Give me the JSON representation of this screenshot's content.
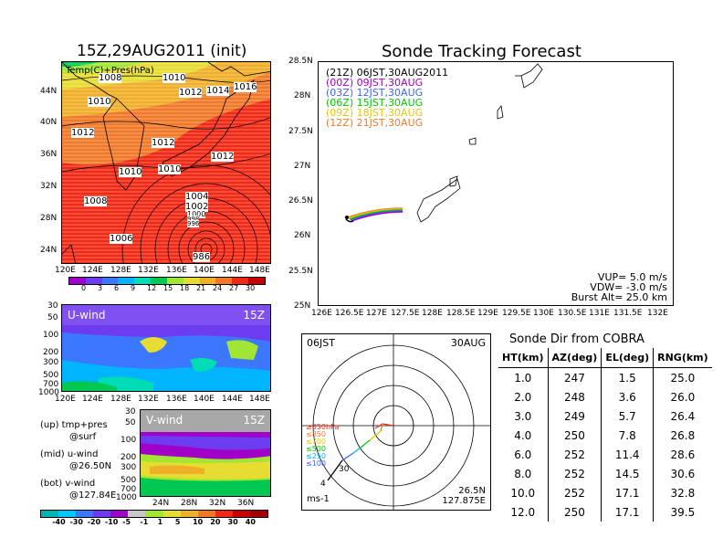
{
  "init_title": "15Z,29AUG2011 (init)",
  "track_title": "Sonde Tracking Forecast",
  "map": {
    "label": "Temp(C)+Pres(hPa)",
    "lat_ticks": [
      "44N",
      "40N",
      "36N",
      "32N",
      "28N",
      "24N"
    ],
    "lon_ticks": [
      "120E",
      "124E",
      "128E",
      "132E",
      "136E",
      "140E",
      "144E",
      "148E"
    ],
    "isobars": [
      "1008",
      "1010",
      "1012",
      "1014",
      "1016",
      "1010",
      "1012",
      "1012",
      "1010",
      "1010",
      "1012",
      "1008",
      "1004",
      "1002",
      "1000",
      "998",
      "996",
      "1006",
      "986"
    ],
    "colorbar": [
      "0",
      "3",
      "6",
      "9",
      "12",
      "15",
      "18",
      "21",
      "24",
      "27",
      "30"
    ],
    "colors": [
      "#a000c8",
      "#6e3cf0",
      "#3c78ff",
      "#00b4ff",
      "#00dcb4",
      "#00c850",
      "#a0e632",
      "#e6dc32",
      "#f0af28",
      "#f07828",
      "#f02814",
      "#c80000"
    ]
  },
  "uwind": {
    "label": "U-wind",
    "time": "15Z",
    "p_ticks": [
      "30",
      "50",
      "100",
      "200",
      "300",
      "500",
      "700",
      "1000"
    ],
    "lon_ticks": [
      "120E",
      "124E",
      "128E",
      "132E",
      "136E",
      "140E",
      "144E",
      "148E"
    ]
  },
  "vwind": {
    "label": "V-wind",
    "time": "15Z",
    "p_ticks": [
      "30",
      "50",
      "100",
      "200",
      "300",
      "500",
      "700",
      "1000"
    ],
    "lat_ticks": [
      "24N",
      "28N",
      "32N",
      "36N"
    ],
    "colorbar": [
      "-40",
      "-30",
      "-20",
      "-10",
      "-5",
      "-1",
      "1",
      "5",
      "10",
      "20",
      "30",
      "40"
    ]
  },
  "legend_notes": [
    {
      "line1": "(up) tmp+pres",
      "line2": "@surf"
    },
    {
      "line1": "(mid) u-wind",
      "line2": "@26.50N"
    },
    {
      "line1": "(bot) v-wind",
      "line2": "@127.84E"
    }
  ],
  "track": {
    "lat_ticks": [
      "28.5N",
      "28N",
      "27.5N",
      "27N",
      "26.5N",
      "26N",
      "25.5N",
      "25N"
    ],
    "lon_ticks": [
      "126E",
      "126.5E",
      "127E",
      "127.5E",
      "128E",
      "128.5E",
      "129E",
      "129.5E",
      "130E",
      "130.5E",
      "131E",
      "131.5E",
      "132E"
    ],
    "times": [
      {
        "label": "(21Z)  06JST,30AUG2011",
        "color": "#000000"
      },
      {
        "label": "(00Z)  09JST,30AUG",
        "color": "#a000c8"
      },
      {
        "label": "(03Z)  12JST,30AUG",
        "color": "#3c64ff"
      },
      {
        "label": "(06Z)  15JST,30AUG",
        "color": "#00c800"
      },
      {
        "label": "(09Z)  18JST,30AUG",
        "color": "#e6c800"
      },
      {
        "label": "(12Z)  21JST,30AUG",
        "color": "#f07828"
      }
    ],
    "vup": "VUP=  5.0  m/s",
    "vdw": "VDW= -3.0  m/s",
    "burst": "Burst Alt=  25.0  km"
  },
  "polar": {
    "time": "06JST",
    "date": "30AUG",
    "units": "ms-1",
    "lat": "26.5N",
    "lon": "127.875E",
    "levels": [
      {
        "label": "≥850hPa",
        "color": "#f02814"
      },
      {
        "label": "≤850",
        "color": "#f07828"
      },
      {
        "label": "≤700",
        "color": "#e6c800"
      },
      {
        "label": "≤500",
        "color": "#00c800"
      },
      {
        "label": "≤250",
        "color": "#00b4ff"
      },
      {
        "label": "≤100",
        "color": "#3c64ff"
      }
    ]
  },
  "sonde_dir": {
    "title": "Sonde Dir from COBRA",
    "headers": [
      "HT(km)",
      "AZ(deg)",
      "EL(deg)",
      "RNG(km)"
    ],
    "rows": [
      [
        "1.0",
        "247",
        "1.5",
        "25.0"
      ],
      [
        "2.0",
        "248",
        "3.6",
        "26.0"
      ],
      [
        "3.0",
        "249",
        "5.7",
        "26.4"
      ],
      [
        "4.0",
        "250",
        "7.8",
        "26.8"
      ],
      [
        "6.0",
        "252",
        "11.4",
        "28.6"
      ],
      [
        "8.0",
        "252",
        "14.5",
        "30.6"
      ],
      [
        "10.0",
        "252",
        "17.1",
        "32.8"
      ],
      [
        "12.0",
        "250",
        "17.1",
        "39.5"
      ]
    ]
  }
}
